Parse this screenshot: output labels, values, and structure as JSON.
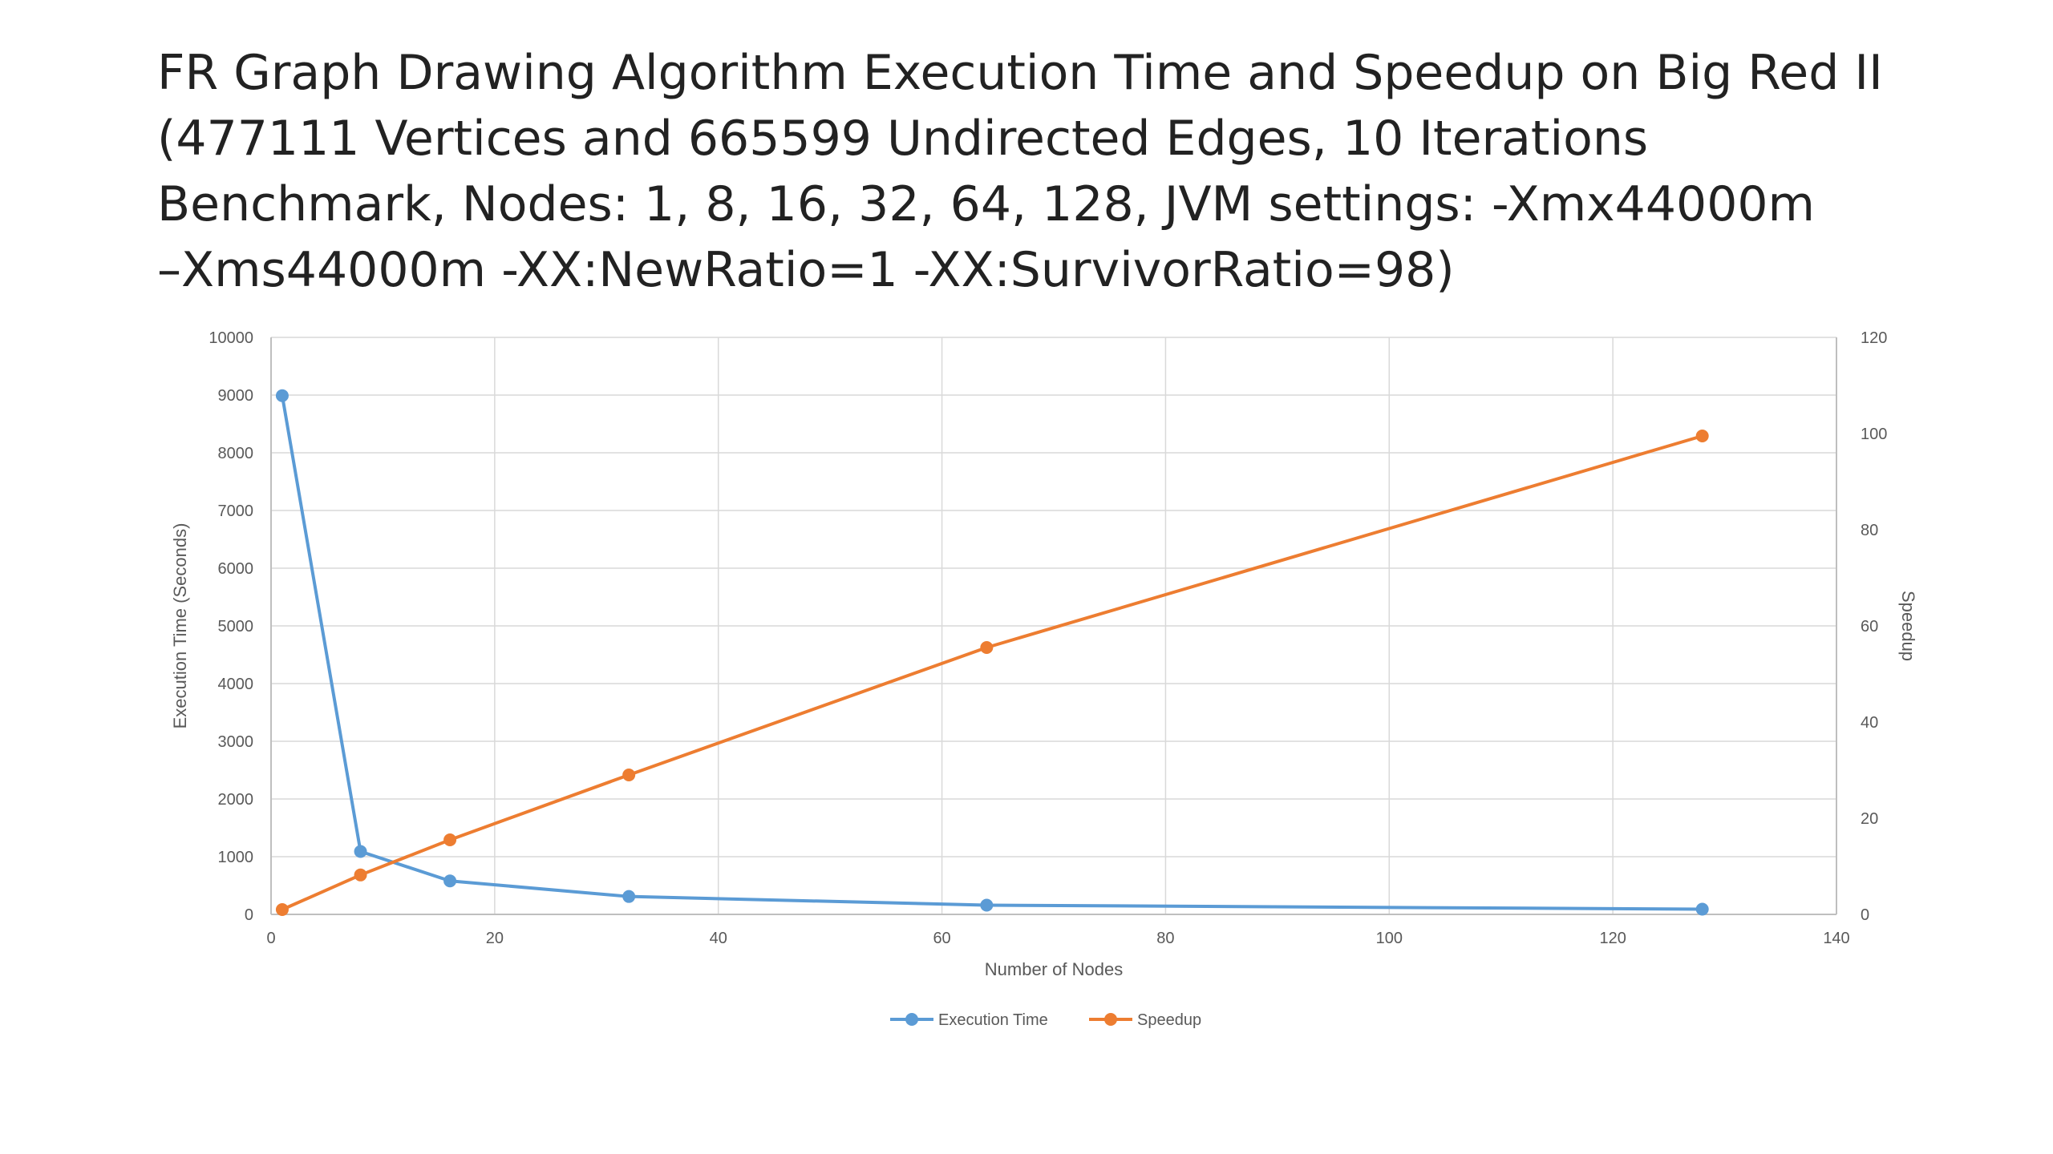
{
  "title_lines": [
    "FR Graph Drawing Algorithm Execution Time and Speedup on Big Red II",
    "(477111 Vertices and 665599 Undirected Edges, 10 Iterations",
    "Benchmark, Nodes: 1, 8, 16, 32, 64, 128, JVM settings: -Xmx44000m",
    "–Xms44000m -XX:NewRatio=1 -XX:SurvivorRatio=98)"
  ],
  "chart_data": {
    "type": "line",
    "title": "FR Graph Drawing Algorithm Execution Time and Speedup on Big Red II (477111 Vertices and 665599 Undirected Edges, 10 Iterations Benchmark, Nodes: 1, 8, 16, 32, 64, 128, JVM settings: -Xmx44000m –Xms44000m -XX:NewRatio=1 -XX:SurvivorRatio=98)",
    "xlabel": "Number of Nodes",
    "ylabel": "Execution Time (Seconds)",
    "y2label": "Speedup",
    "xlim": [
      0,
      140
    ],
    "xticks": [
      0,
      20,
      40,
      60,
      80,
      100,
      120,
      140
    ],
    "ylim": [
      0,
      10000
    ],
    "yticks": [
      0,
      1000,
      2000,
      3000,
      4000,
      5000,
      6000,
      7000,
      8000,
      9000,
      10000
    ],
    "y2lim": [
      0,
      120
    ],
    "y2ticks": [
      0,
      20,
      40,
      60,
      80,
      100,
      120
    ],
    "grid": true,
    "legend_position": "bottom",
    "x": [
      1,
      8,
      16,
      32,
      64,
      128
    ],
    "series": [
      {
        "name": "Execution Time",
        "axis": "left",
        "color": "#5b9bd5",
        "values": [
          8990,
          1090,
          580,
          310,
          160,
          90
        ]
      },
      {
        "name": "Speedup",
        "axis": "right",
        "color": "#ed7d31",
        "values": [
          1,
          8.2,
          15.5,
          29,
          55.5,
          99.5
        ]
      }
    ]
  }
}
